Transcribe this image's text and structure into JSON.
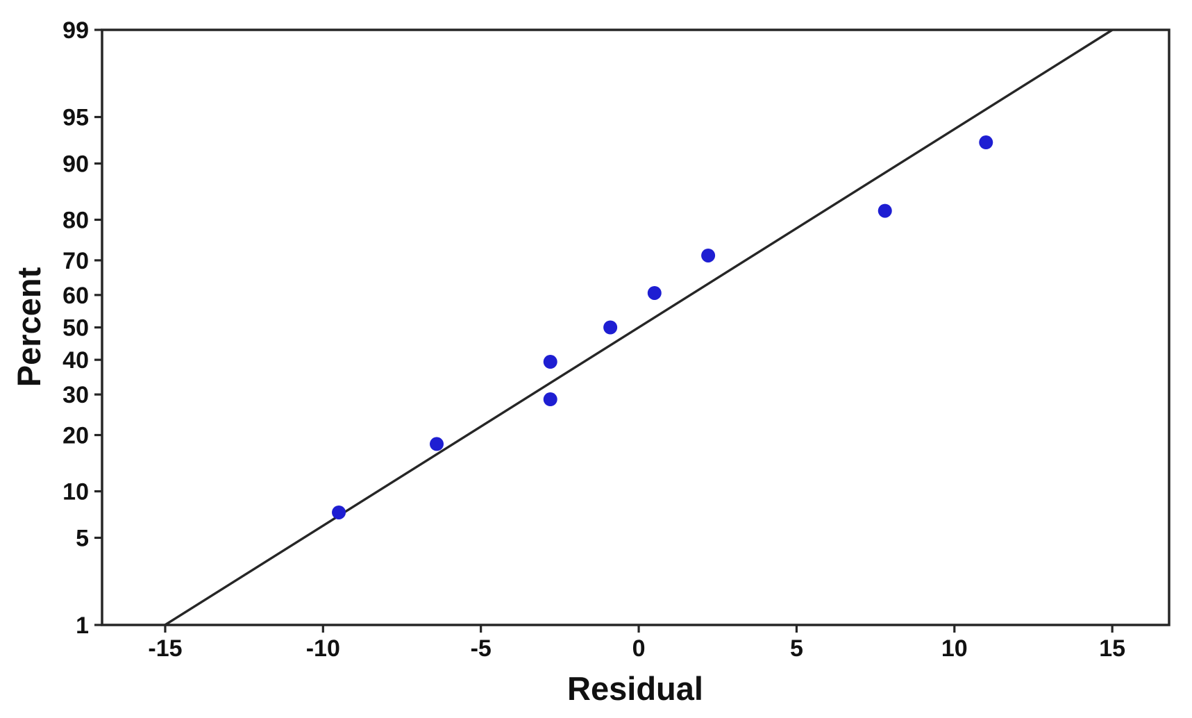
{
  "colors": {
    "background": "#ffffff",
    "point": "#1e1ed2",
    "fit_line": "#262626",
    "axis": "#262626",
    "text": "#111111"
  },
  "chart_data": {
    "type": "scatter",
    "subtype": "normal-probability-plot",
    "title": "",
    "xlabel": "Residual",
    "ylabel": "Percent",
    "x_ticks": [
      -15,
      -10,
      -5,
      0,
      5,
      10,
      15
    ],
    "y_ticks": [
      1,
      5,
      10,
      20,
      30,
      40,
      50,
      60,
      70,
      80,
      90,
      95,
      99
    ],
    "y_scale": "normal-probability",
    "xlim": [
      -17,
      16.8
    ],
    "ylim": [
      1,
      99
    ],
    "grid": false,
    "legend": false,
    "points": [
      {
        "residual": -9.5,
        "percent": 7.4
      },
      {
        "residual": -6.4,
        "percent": 18.1
      },
      {
        "residual": -2.8,
        "percent": 28.7
      },
      {
        "residual": -2.8,
        "percent": 39.4
      },
      {
        "residual": -0.9,
        "percent": 50.0
      },
      {
        "residual": 0.5,
        "percent": 60.6
      },
      {
        "residual": 2.2,
        "percent": 71.3
      },
      {
        "residual": 7.8,
        "percent": 81.9
      },
      {
        "residual": 11.0,
        "percent": 92.6
      }
    ],
    "fit_line": {
      "mean": 0,
      "sd": 6.45
    }
  }
}
